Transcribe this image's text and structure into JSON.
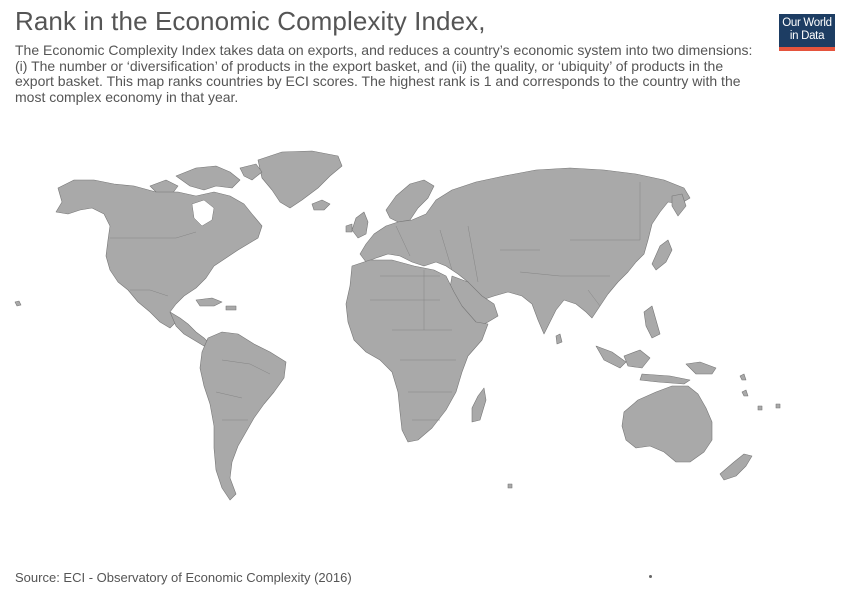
{
  "header": {
    "title": "Rank in the Economic Complexity Index,",
    "subtitle": "The Economic Complexity Index takes data on exports, and reduces a country’s economic system into two dimensions: (i) The number or ‘diversification’ of products in the export basket, and (ii) the quality, or ‘ubiquity’ of products in the export basket. This map ranks countries by ECI scores. The highest rank is 1 and corresponds to the country with the most complex economy in that year."
  },
  "logo": {
    "line1": "Our World",
    "line2": "in Data",
    "bg_color": "#1d3d63",
    "accent_color": "#e5543d"
  },
  "map": {
    "type": "choropleth-world",
    "land_color": "#a9a9a9",
    "border_color": "#777777",
    "data_shown": "none"
  },
  "footer": {
    "source": "Source: ECI - Observatory of Economic Complexity (2016)"
  }
}
